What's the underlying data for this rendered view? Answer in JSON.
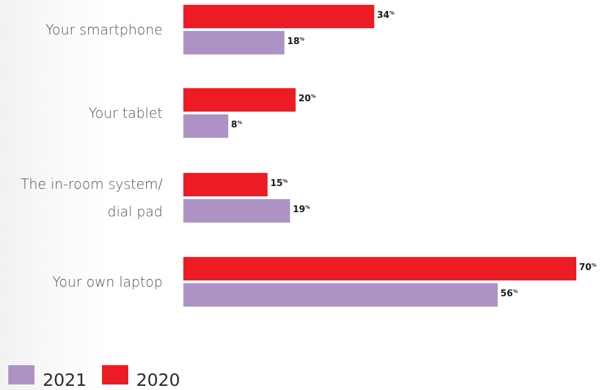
{
  "chart_data": {
    "type": "bar",
    "orientation": "horizontal",
    "categories": [
      [
        "Your smartphone"
      ],
      [
        "Your tablet"
      ],
      [
        "The in-room system/",
        "dial pad"
      ],
      [
        "Your own laptop"
      ]
    ],
    "series": [
      {
        "name": "2020",
        "values": [
          34,
          20,
          15,
          70
        ],
        "color": "#ed1c24"
      },
      {
        "name": "2021",
        "values": [
          18,
          8,
          19,
          56
        ],
        "color": "#ae92c5"
      }
    ],
    "value_suffix": "%",
    "xlim": [
      0,
      72
    ],
    "grid": false,
    "legend_position": "bottom-left",
    "legend_order": [
      "2021",
      "2020"
    ]
  }
}
